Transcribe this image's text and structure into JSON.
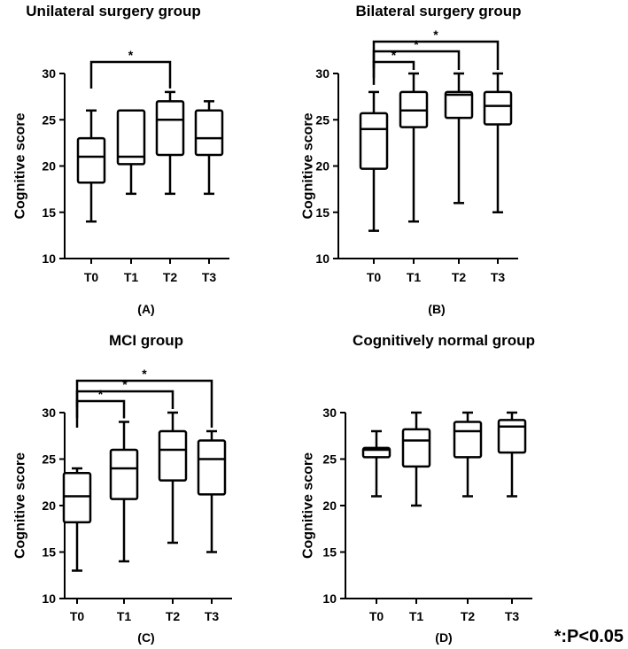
{
  "chart_data": [
    {
      "type": "box",
      "title": "Unilateral surgery group",
      "panel_label": "(A)",
      "ylabel": "Cognitive score",
      "ylim": [
        10,
        30
      ],
      "yticks": [
        10,
        15,
        20,
        25,
        30
      ],
      "categories": [
        "T0",
        "T1",
        "T2",
        "T3"
      ],
      "boxes": [
        {
          "min": 14,
          "q1": 18.2,
          "median": 21,
          "q3": 23,
          "max": 26
        },
        {
          "min": 17,
          "q1": 20.2,
          "median": 21,
          "q3": 26,
          "max": 26
        },
        {
          "min": 17,
          "q1": 21.2,
          "median": 25,
          "q3": 27,
          "max": 28
        },
        {
          "min": 17,
          "q1": 21.2,
          "median": 23,
          "q3": 26,
          "max": 27
        }
      ],
      "significance": [
        {
          "from": "T0",
          "to": "T2",
          "label": "*"
        }
      ]
    },
    {
      "type": "box",
      "title": "Bilateral surgery group",
      "panel_label": "(B)",
      "ylabel": "Cognitive score",
      "ylim": [
        10,
        30
      ],
      "yticks": [
        10,
        15,
        20,
        25,
        30
      ],
      "categories": [
        "T0",
        "T1",
        "T2",
        "T3"
      ],
      "boxes": [
        {
          "min": 13,
          "q1": 19.7,
          "median": 24,
          "q3": 25.7,
          "max": 28
        },
        {
          "min": 14,
          "q1": 24.2,
          "median": 26,
          "q3": 28,
          "max": 30
        },
        {
          "min": 16,
          "q1": 25.2,
          "median": 27.7,
          "q3": 28,
          "max": 30
        },
        {
          "min": 15,
          "q1": 24.5,
          "median": 26.5,
          "q3": 28,
          "max": 30
        }
      ],
      "significance": [
        {
          "from": "T0",
          "to": "T1",
          "label": "*"
        },
        {
          "from": "T0",
          "to": "T2",
          "label": "*"
        },
        {
          "from": "T0",
          "to": "T3",
          "label": "*"
        }
      ]
    },
    {
      "type": "box",
      "title": "MCI group",
      "panel_label": "(C)",
      "ylabel": "Cognitive score",
      "ylim": [
        10,
        30
      ],
      "yticks": [
        10,
        15,
        20,
        25,
        30
      ],
      "categories": [
        "T0",
        "T1",
        "T2",
        "T3"
      ],
      "boxes": [
        {
          "min": 13,
          "q1": 18.2,
          "median": 21,
          "q3": 23.5,
          "max": 24
        },
        {
          "min": 14,
          "q1": 20.7,
          "median": 24,
          "q3": 26,
          "max": 29
        },
        {
          "min": 16,
          "q1": 22.7,
          "median": 26,
          "q3": 28,
          "max": 30
        },
        {
          "min": 15,
          "q1": 21.2,
          "median": 25,
          "q3": 27,
          "max": 28
        }
      ],
      "significance": [
        {
          "from": "T0",
          "to": "T1",
          "label": "*"
        },
        {
          "from": "T0",
          "to": "T2",
          "label": "*"
        },
        {
          "from": "T0",
          "to": "T3",
          "label": "*"
        }
      ]
    },
    {
      "type": "box",
      "title": "Cognitively normal group",
      "panel_label": "(D)",
      "ylabel": "Cognitive score",
      "ylim": [
        10,
        30
      ],
      "yticks": [
        10,
        15,
        20,
        25,
        30
      ],
      "categories": [
        "T0",
        "T1",
        "T2",
        "T3"
      ],
      "boxes": [
        {
          "min": 21,
          "q1": 25.2,
          "median": 26,
          "q3": 26.2,
          "max": 28
        },
        {
          "min": 20,
          "q1": 24.2,
          "median": 27,
          "q3": 28.2,
          "max": 30
        },
        {
          "min": 21,
          "q1": 25.2,
          "median": 28,
          "q3": 29,
          "max": 30
        },
        {
          "min": 21,
          "q1": 25.7,
          "median": 28.5,
          "q3": 29.2,
          "max": 30
        }
      ],
      "significance": []
    }
  ],
  "footnote": "*:P<0.05"
}
